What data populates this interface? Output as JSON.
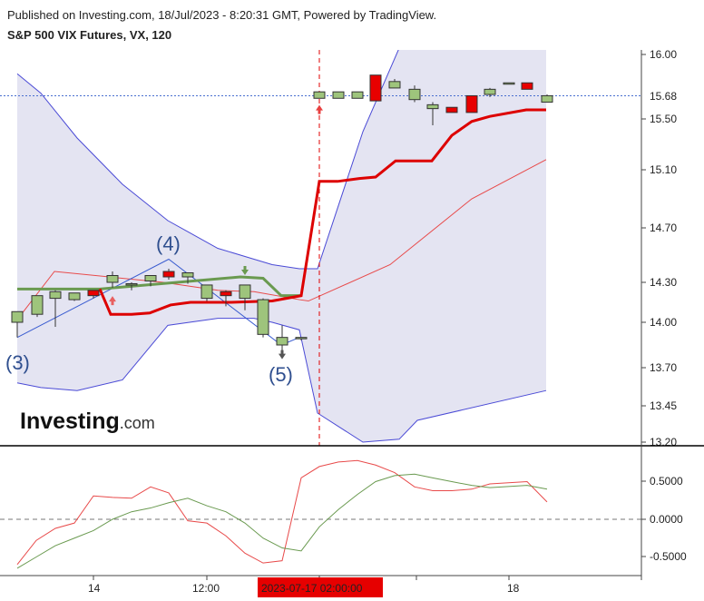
{
  "header": {
    "published": "Published on Investing.com, 18/Jul/2023 - 8:20:31 GMT, Powered by TradingView.",
    "title": "S&P 500 VIX Futures, VX, 120"
  },
  "logo": {
    "main": "Investing",
    "suffix": ".com"
  },
  "colors": {
    "band_fill": "#e4e4f2",
    "band_line": "#4a4ad6",
    "mid_line": "#e84a4a",
    "tenkan": "#6a9a50",
    "kijun": "#dd0000",
    "up_candle": "#9ec47c",
    "down_candle": "#e80000",
    "current_price": "#4a6fd0",
    "osc_red": "#e84a4a",
    "osc_green": "#6a9a50"
  },
  "chart_data": [
    {
      "type": "candlestick",
      "y_ticks": [
        "16.00",
        "15.50",
        "15.10",
        "14.70",
        "14.30",
        "14.00",
        "13.70",
        "13.45",
        "13.20"
      ],
      "current_price": "15.68",
      "ylim": [
        13.2,
        16.0
      ],
      "x_ticks": [
        "14",
        "12:00",
        "2023-07-17 02:00:00",
        "18"
      ],
      "wave_labels": [
        "(3)",
        "(4)",
        "(5)"
      ],
      "candles": [
        {
          "o": 14.0,
          "h": 14.08,
          "l": 13.9,
          "c": 14.08
        },
        {
          "o": 14.06,
          "h": 14.2,
          "l": 14.04,
          "c": 14.2
        },
        {
          "o": 14.18,
          "h": 14.24,
          "l": 13.97,
          "c": 14.23
        },
        {
          "o": 14.17,
          "h": 14.22,
          "l": 14.16,
          "c": 14.22
        },
        {
          "o": 14.24,
          "h": 14.24,
          "l": 14.18,
          "c": 14.2
        },
        {
          "o": 14.3,
          "h": 14.38,
          "l": 14.26,
          "c": 14.35
        },
        {
          "o": 14.29,
          "h": 14.3,
          "l": 14.24,
          "c": 14.29
        },
        {
          "o": 14.31,
          "h": 14.35,
          "l": 14.27,
          "c": 14.35
        },
        {
          "o": 14.38,
          "h": 14.4,
          "l": 14.32,
          "c": 14.34
        },
        {
          "o": 14.34,
          "h": 14.37,
          "l": 14.29,
          "c": 14.37
        },
        {
          "o": 14.18,
          "h": 14.28,
          "l": 14.16,
          "c": 14.28
        },
        {
          "o": 14.23,
          "h": 14.24,
          "l": 14.12,
          "c": 14.2
        },
        {
          "o": 14.18,
          "h": 14.28,
          "l": 14.09,
          "c": 14.28
        },
        {
          "o": 13.92,
          "h": 14.18,
          "l": 13.9,
          "c": 14.17
        },
        {
          "o": 13.85,
          "h": 13.98,
          "l": 13.8,
          "c": 13.9
        },
        {
          "o": 13.9,
          "h": 13.9,
          "l": 13.88,
          "c": 13.9
        },
        {
          "o": 15.66,
          "h": 15.71,
          "l": 15.66,
          "c": 15.71
        },
        {
          "o": 15.66,
          "h": 15.71,
          "l": 15.66,
          "c": 15.71
        },
        {
          "o": 15.66,
          "h": 15.71,
          "l": 15.66,
          "c": 15.71
        },
        {
          "o": 15.84,
          "h": 15.84,
          "l": 15.64,
          "c": 15.64
        },
        {
          "o": 15.74,
          "h": 15.81,
          "l": 15.74,
          "c": 15.79
        },
        {
          "o": 15.65,
          "h": 15.76,
          "l": 15.63,
          "c": 15.73
        },
        {
          "o": 15.58,
          "h": 15.63,
          "l": 15.45,
          "c": 15.61
        },
        {
          "o": 15.59,
          "h": 15.59,
          "l": 15.55,
          "c": 15.55
        },
        {
          "o": 15.68,
          "h": 15.68,
          "l": 15.55,
          "c": 15.55
        },
        {
          "o": 15.69,
          "h": 15.74,
          "l": 15.67,
          "c": 15.73
        },
        {
          "o": 15.78,
          "h": 15.78,
          "l": 15.78,
          "c": 15.78
        },
        {
          "o": 15.78,
          "h": 15.78,
          "l": 15.73,
          "c": 15.73
        },
        {
          "o": 15.63,
          "h": 15.69,
          "l": 15.63,
          "c": 15.68
        }
      ],
      "band_upper": [
        15.85,
        15.7,
        15.35,
        15.0,
        14.75,
        14.55,
        14.47,
        14.43,
        14.4,
        14.4,
        15.4,
        16.05,
        16.05,
        16.05
      ],
      "band_lower": [
        13.6,
        13.57,
        13.55,
        13.62,
        13.98,
        14.03,
        14.03,
        14.0,
        13.95,
        13.4,
        13.2,
        13.22,
        13.35,
        13.55
      ],
      "band_mid": [
        14.02,
        14.38,
        14.3,
        14.24,
        14.23,
        14.17,
        14.16,
        14.43,
        14.9,
        15.18
      ],
      "tenkan": [
        14.25,
        14.25,
        14.25,
        14.25,
        14.25,
        14.25,
        14.34,
        14.33,
        14.2,
        14.2
      ],
      "kijun": [
        14.25,
        14.06,
        14.06,
        14.07,
        14.13,
        14.15,
        14.15,
        14.15,
        14.16,
        14.2,
        14.2,
        15.02,
        15.02,
        15.04,
        15.05,
        15.17,
        15.17,
        15.17,
        15.37,
        15.48,
        15.52,
        15.57,
        15.57
      ]
    },
    {
      "type": "line",
      "y_ticks": [
        "0.5000",
        "0.0000",
        "-0.5000"
      ],
      "ylim": [
        -0.75,
        0.82
      ],
      "series": [
        {
          "values": [
            -0.6,
            -0.28,
            -0.12,
            -0.05,
            0.31,
            0.29,
            0.28,
            0.43,
            0.35,
            -0.02,
            -0.05,
            -0.22,
            -0.45,
            -0.58,
            -0.55,
            0.55,
            0.7,
            0.76,
            0.78,
            0.72,
            0.62,
            0.43,
            0.38,
            0.38,
            0.4,
            0.47,
            0.5,
            0.23
          ]
        },
        {
          "values": [
            -0.65,
            -0.5,
            -0.35,
            -0.25,
            -0.15,
            0.0,
            0.1,
            0.15,
            0.22,
            0.28,
            0.18,
            0.1,
            -0.05,
            -0.25,
            -0.38,
            -0.42,
            -0.1,
            0.13,
            0.33,
            0.5,
            0.58,
            0.6,
            0.55,
            0.5,
            0.45,
            0.42,
            0.45,
            0.4
          ]
        }
      ]
    }
  ]
}
